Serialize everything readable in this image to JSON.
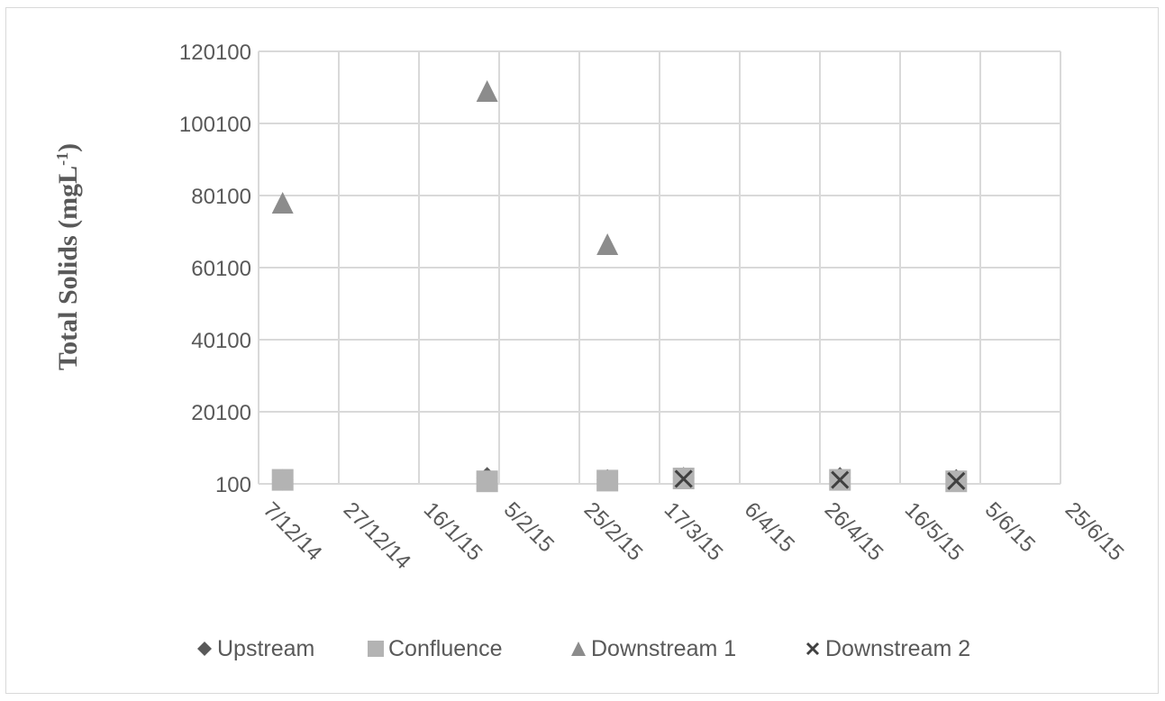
{
  "chart_data": {
    "type": "scatter",
    "title": "",
    "xlabel": "",
    "ylabel": "Total Solids (mgL",
    "ylabel_superscript": "-1",
    "ylabel_close": ")",
    "x_start": "2014-12-07",
    "xlim": [
      "2014-12-07",
      "2015-06-25"
    ],
    "x_step_days": 20,
    "x_tick_labels": [
      "7/12/14",
      "27/12/14",
      "16/1/15",
      "5/2/15",
      "25/2/15",
      "17/3/15",
      "6/4/15",
      "26/4/15",
      "16/5/15",
      "5/6/15",
      "25/6/15"
    ],
    "ylim": [
      100,
      120100
    ],
    "y_ticks": [
      100,
      20100,
      40100,
      60100,
      80100,
      100100,
      120100
    ],
    "y_tick_labels": [
      "100",
      "20100",
      "40100",
      "60100",
      "80100",
      "100100",
      "120100"
    ],
    "grid": true,
    "legend_position": "bottom",
    "series": [
      {
        "name": "Upstream",
        "marker": "diamond",
        "color": "#595959",
        "points": [
          {
            "x": "2014-12-13",
            "y": 1200
          },
          {
            "x": "2015-02-02",
            "y": 1800
          },
          {
            "x": "2015-03-04",
            "y": 1200
          },
          {
            "x": "2015-03-23",
            "y": 1800
          },
          {
            "x": "2015-05-01",
            "y": 1800
          },
          {
            "x": "2015-05-30",
            "y": 1200
          }
        ]
      },
      {
        "name": "Confluence",
        "marker": "square",
        "color": "#b3b3b3",
        "points": [
          {
            "x": "2014-12-13",
            "y": 1200
          },
          {
            "x": "2015-02-02",
            "y": 800
          },
          {
            "x": "2015-03-04",
            "y": 1000
          },
          {
            "x": "2015-03-23",
            "y": 1600
          },
          {
            "x": "2015-05-01",
            "y": 1200
          },
          {
            "x": "2015-05-30",
            "y": 800
          }
        ]
      },
      {
        "name": "Downstream 1",
        "marker": "triangle",
        "color": "#8c8c8c",
        "points": [
          {
            "x": "2014-12-13",
            "y": 78100
          },
          {
            "x": "2015-02-02",
            "y": 109100
          },
          {
            "x": "2015-03-04",
            "y": 66600
          }
        ]
      },
      {
        "name": "Downstream 2",
        "marker": "x",
        "color": "#404040",
        "points": [
          {
            "x": "2015-03-23",
            "y": 1500
          },
          {
            "x": "2015-05-01",
            "y": 1200
          },
          {
            "x": "2015-05-30",
            "y": 900
          }
        ]
      }
    ]
  }
}
